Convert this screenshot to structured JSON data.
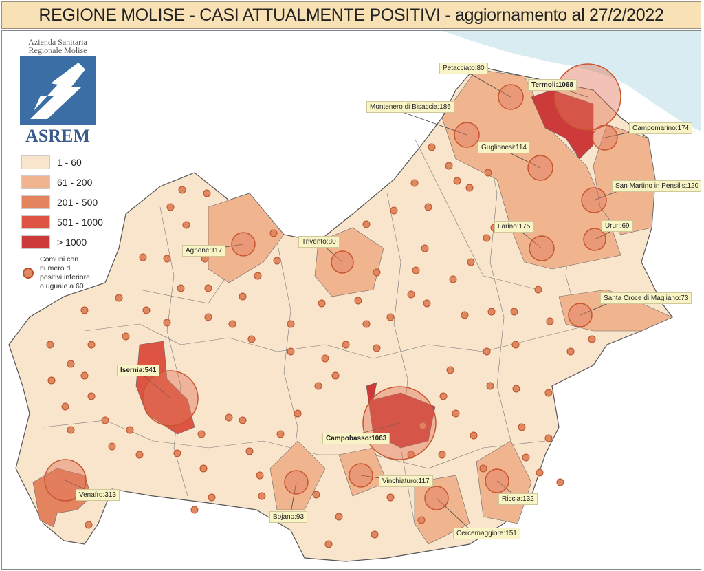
{
  "title": "REGIONE MOLISE - CASI ATTUALMENTE POSITIVI - aggiornamento al 27/2/2022",
  "logo": {
    "line1": "Azienda Sanitaria",
    "line2": "Regionale Molise",
    "name": "ASREM"
  },
  "legend": [
    {
      "label": "1 - 60",
      "color": "#f9e4cc"
    },
    {
      "label": "61 - 200",
      "color": "#f0b58f"
    },
    {
      "label": "201 - 500",
      "color": "#e3845f"
    },
    {
      "label": "501 - 1000",
      "color": "#dd5443"
    },
    {
      "label": "> 1000",
      "color": "#cc3a3a"
    }
  ],
  "legend_note": "Comuni con numero di positivi inferiore o uguale a 60",
  "colors": {
    "sea": "#d8ecf2",
    "marker": "#e08860"
  },
  "comuni": [
    {
      "label": "Petacciato:80",
      "class": "61 - 200"
    },
    {
      "label": "Termoli:1068",
      "class": "> 1000",
      "bold": true
    },
    {
      "label": "Montenero di Bisaccia:186",
      "class": "61 - 200"
    },
    {
      "label": "Campomarino:174",
      "class": "61 - 200"
    },
    {
      "label": "Guglionesi:114",
      "class": "61 - 200"
    },
    {
      "label": "San Martino in Pensilis:120",
      "class": "61 - 200"
    },
    {
      "label": "Larino:175",
      "class": "61 - 200"
    },
    {
      "label": "Ururi:69",
      "class": "61 - 200"
    },
    {
      "label": "Trivento:80",
      "class": "61 - 200"
    },
    {
      "label": "Agnone:117",
      "class": "61 - 200"
    },
    {
      "label": "Santa Croce di Magliano:73",
      "class": "61 - 200"
    },
    {
      "label": "Isernia:541",
      "class": "501 - 1000",
      "bold": true
    },
    {
      "label": "Campobasso:1063",
      "class": "> 1000",
      "bold": true
    },
    {
      "label": "Vinchiaturo:117",
      "class": "61 - 200"
    },
    {
      "label": "Venafro:313",
      "class": "201 - 500"
    },
    {
      "label": "Bojano:93",
      "class": "61 - 200"
    },
    {
      "label": "Riccia:132",
      "class": "61 - 200"
    },
    {
      "label": "Cercemaggiore:151",
      "class": "61 - 200"
    }
  ]
}
